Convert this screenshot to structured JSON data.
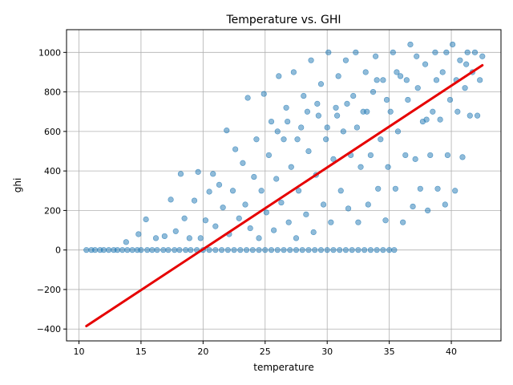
{
  "chart_data": {
    "type": "scatter",
    "title": "Temperature vs. GHI",
    "xlabel": "temperature",
    "ylabel": "ghi",
    "xlim": [
      9,
      44
    ],
    "ylim": [
      -460,
      1115
    ],
    "xticks": [
      10,
      15,
      20,
      25,
      30,
      35,
      40
    ],
    "yticks": [
      -400,
      -200,
      0,
      200,
      400,
      600,
      800,
      1000
    ],
    "grid": true,
    "legend": "none",
    "colors": {
      "points": "#1f77b4",
      "trend": "#e60000",
      "grid": "#b0b0b0"
    },
    "series": [
      {
        "kind": "scatter",
        "points": [
          [
            10.6,
            0
          ],
          [
            11.0,
            0
          ],
          [
            11.3,
            0
          ],
          [
            11.7,
            0
          ],
          [
            12.0,
            0
          ],
          [
            12.4,
            0
          ],
          [
            12.8,
            0
          ],
          [
            13.1,
            0
          ],
          [
            13.5,
            0
          ],
          [
            13.9,
            0
          ],
          [
            14.3,
            0
          ],
          [
            14.7,
            0
          ],
          [
            15.0,
            0
          ],
          [
            15.5,
            0
          ],
          [
            15.9,
            0
          ],
          [
            16.3,
            0
          ],
          [
            16.8,
            0
          ],
          [
            17.2,
            0
          ],
          [
            17.7,
            0
          ],
          [
            18.1,
            0
          ],
          [
            18.6,
            0
          ],
          [
            19.0,
            0
          ],
          [
            19.5,
            0
          ],
          [
            20.0,
            0
          ],
          [
            20.5,
            0
          ],
          [
            21.0,
            0
          ],
          [
            21.5,
            0
          ],
          [
            22.0,
            0
          ],
          [
            22.5,
            0
          ],
          [
            23.0,
            0
          ],
          [
            23.5,
            0
          ],
          [
            24.0,
            0
          ],
          [
            24.5,
            0
          ],
          [
            25.0,
            0
          ],
          [
            25.5,
            0
          ],
          [
            26.0,
            0
          ],
          [
            26.5,
            0
          ],
          [
            27.0,
            0
          ],
          [
            27.5,
            0
          ],
          [
            28.0,
            0
          ],
          [
            28.5,
            0
          ],
          [
            29.0,
            0
          ],
          [
            29.5,
            0
          ],
          [
            30.0,
            0
          ],
          [
            30.5,
            0
          ],
          [
            31.0,
            0
          ],
          [
            31.5,
            0
          ],
          [
            32.0,
            0
          ],
          [
            32.5,
            0
          ],
          [
            33.0,
            0
          ],
          [
            33.5,
            0
          ],
          [
            34.0,
            0
          ],
          [
            34.5,
            0
          ],
          [
            35.0,
            0
          ],
          [
            35.4,
            0
          ],
          [
            13.8,
            40
          ],
          [
            14.8,
            80
          ],
          [
            15.4,
            155
          ],
          [
            16.2,
            60
          ],
          [
            16.9,
            70
          ],
          [
            17.4,
            255
          ],
          [
            17.8,
            95
          ],
          [
            18.2,
            385
          ],
          [
            18.5,
            160
          ],
          [
            18.9,
            60
          ],
          [
            19.3,
            250
          ],
          [
            19.6,
            395
          ],
          [
            19.8,
            60
          ],
          [
            20.2,
            150
          ],
          [
            20.5,
            295
          ],
          [
            20.8,
            385
          ],
          [
            21.0,
            120
          ],
          [
            21.3,
            330
          ],
          [
            21.6,
            215
          ],
          [
            21.9,
            605
          ],
          [
            22.1,
            80
          ],
          [
            22.4,
            300
          ],
          [
            22.6,
            510
          ],
          [
            22.9,
            160
          ],
          [
            23.2,
            440
          ],
          [
            23.4,
            230
          ],
          [
            23.6,
            770
          ],
          [
            23.8,
            110
          ],
          [
            24.1,
            370
          ],
          [
            24.3,
            560
          ],
          [
            24.5,
            60
          ],
          [
            24.7,
            300
          ],
          [
            24.9,
            790
          ],
          [
            25.1,
            190
          ],
          [
            25.3,
            480
          ],
          [
            25.5,
            650
          ],
          [
            25.7,
            100
          ],
          [
            25.9,
            360
          ],
          [
            26.1,
            880
          ],
          [
            26.3,
            240
          ],
          [
            26.5,
            560
          ],
          [
            26.7,
            720
          ],
          [
            26.9,
            140
          ],
          [
            27.1,
            420
          ],
          [
            27.3,
            900
          ],
          [
            27.5,
            60
          ],
          [
            27.7,
            300
          ],
          [
            27.9,
            620
          ],
          [
            28.1,
            780
          ],
          [
            28.3,
            180
          ],
          [
            28.5,
            500
          ],
          [
            28.7,
            960
          ],
          [
            28.9,
            90
          ],
          [
            29.1,
            380
          ],
          [
            29.3,
            680
          ],
          [
            29.5,
            840
          ],
          [
            29.7,
            230
          ],
          [
            29.9,
            560
          ],
          [
            30.1,
            1000
          ],
          [
            30.3,
            140
          ],
          [
            30.5,
            460
          ],
          [
            30.7,
            720
          ],
          [
            30.9,
            880
          ],
          [
            31.1,
            300
          ],
          [
            31.3,
            600
          ],
          [
            31.5,
            960
          ],
          [
            31.7,
            210
          ],
          [
            31.9,
            480
          ],
          [
            32.1,
            780
          ],
          [
            32.3,
            1000
          ],
          [
            32.5,
            140
          ],
          [
            32.7,
            420
          ],
          [
            32.9,
            700
          ],
          [
            33.1,
            900
          ],
          [
            33.3,
            230
          ],
          [
            33.5,
            480
          ],
          [
            33.7,
            800
          ],
          [
            33.9,
            980
          ],
          [
            34.1,
            310
          ],
          [
            34.3,
            560
          ],
          [
            34.5,
            860
          ],
          [
            34.7,
            150
          ],
          [
            34.9,
            420
          ],
          [
            35.1,
            700
          ],
          [
            35.3,
            1000
          ],
          [
            35.5,
            310
          ],
          [
            35.7,
            600
          ],
          [
            35.9,
            880
          ],
          [
            36.1,
            140
          ],
          [
            36.3,
            480
          ],
          [
            36.5,
            760
          ],
          [
            36.7,
            1040
          ],
          [
            36.9,
            220
          ],
          [
            37.1,
            460
          ],
          [
            37.3,
            820
          ],
          [
            37.5,
            310
          ],
          [
            37.7,
            650
          ],
          [
            37.9,
            940
          ],
          [
            38.1,
            200
          ],
          [
            38.3,
            480
          ],
          [
            38.5,
            700
          ],
          [
            38.7,
            1000
          ],
          [
            38.9,
            310
          ],
          [
            39.1,
            660
          ],
          [
            39.3,
            900
          ],
          [
            39.5,
            230
          ],
          [
            39.7,
            480
          ],
          [
            39.9,
            760
          ],
          [
            40.1,
            1040
          ],
          [
            40.3,
            300
          ],
          [
            40.5,
            700
          ],
          [
            40.7,
            960
          ],
          [
            40.9,
            470
          ],
          [
            41.1,
            820
          ],
          [
            41.3,
            1000
          ],
          [
            41.5,
            680
          ],
          [
            41.7,
            900
          ],
          [
            41.9,
            1000
          ],
          [
            42.1,
            680
          ],
          [
            42.3,
            860
          ],
          [
            42.5,
            980
          ],
          [
            26.0,
            600
          ],
          [
            26.8,
            650
          ],
          [
            27.6,
            560
          ],
          [
            28.4,
            700
          ],
          [
            29.2,
            740
          ],
          [
            30.0,
            620
          ],
          [
            30.8,
            680
          ],
          [
            31.6,
            740
          ],
          [
            32.4,
            620
          ],
          [
            33.2,
            700
          ],
          [
            34.0,
            860
          ],
          [
            34.8,
            760
          ],
          [
            35.6,
            900
          ],
          [
            36.4,
            860
          ],
          [
            37.2,
            980
          ],
          [
            38.0,
            660
          ],
          [
            38.8,
            860
          ],
          [
            39.6,
            1000
          ],
          [
            40.4,
            860
          ],
          [
            41.2,
            940
          ]
        ]
      },
      {
        "kind": "line",
        "x": [
          10.6,
          42.5
        ],
        "y": [
          -385,
          935
        ]
      }
    ]
  }
}
